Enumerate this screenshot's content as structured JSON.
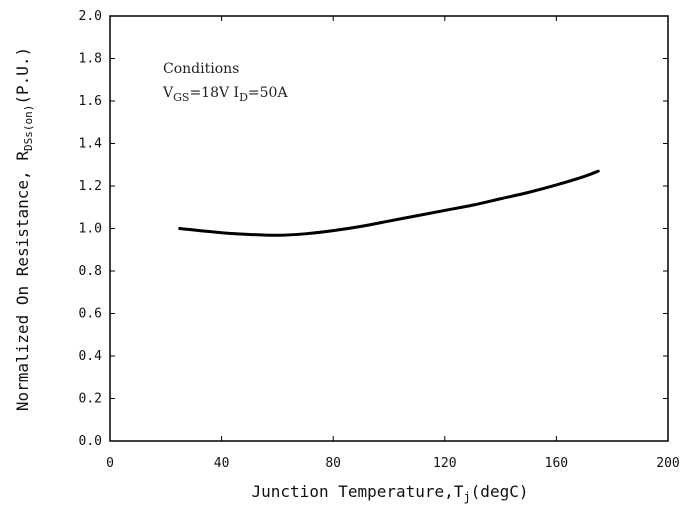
{
  "chart_data": {
    "type": "line",
    "title": "",
    "xlabel": {
      "main": "Junction Temperature,T",
      "sub": "j",
      "tail": "(degC)"
    },
    "ylabel": {
      "main": "Normalized On Resistance, R",
      "sub": "DSs(on)",
      "tail": "(P.U.)"
    },
    "xlim": [
      0,
      200
    ],
    "ylim": [
      0,
      2.0
    ],
    "xticks": [
      0,
      40,
      80,
      120,
      160,
      200
    ],
    "xtick_labels": [
      "0",
      "40",
      "80",
      "120",
      "160",
      "200"
    ],
    "yticks": [
      0,
      0.2,
      0.4,
      0.6,
      0.8,
      1.0,
      1.2,
      1.4,
      1.6,
      1.8,
      2.0
    ],
    "ytick_labels": [
      "0.0",
      "0.2",
      "0.4",
      "0.6",
      "0.8",
      "1.0",
      "1.2",
      "1.4",
      "1.6",
      "1.8",
      "2.0"
    ],
    "grid": false,
    "annotation": {
      "line1": "Conditions",
      "line2_a": "V",
      "line2_a_sub": "GS",
      "line2_b": "=18V I",
      "line2_b_sub": "D",
      "line2_c": "=50A"
    },
    "series": [
      {
        "x": [
          25,
          40,
          50,
          60,
          70,
          80,
          90,
          100,
          110,
          120,
          130,
          140,
          150,
          160,
          170,
          175
        ],
        "y": [
          1.0,
          0.98,
          0.972,
          0.968,
          0.975,
          0.99,
          1.01,
          1.035,
          1.06,
          1.085,
          1.11,
          1.14,
          1.17,
          1.205,
          1.245,
          1.27
        ],
        "color": "#000000"
      }
    ]
  }
}
